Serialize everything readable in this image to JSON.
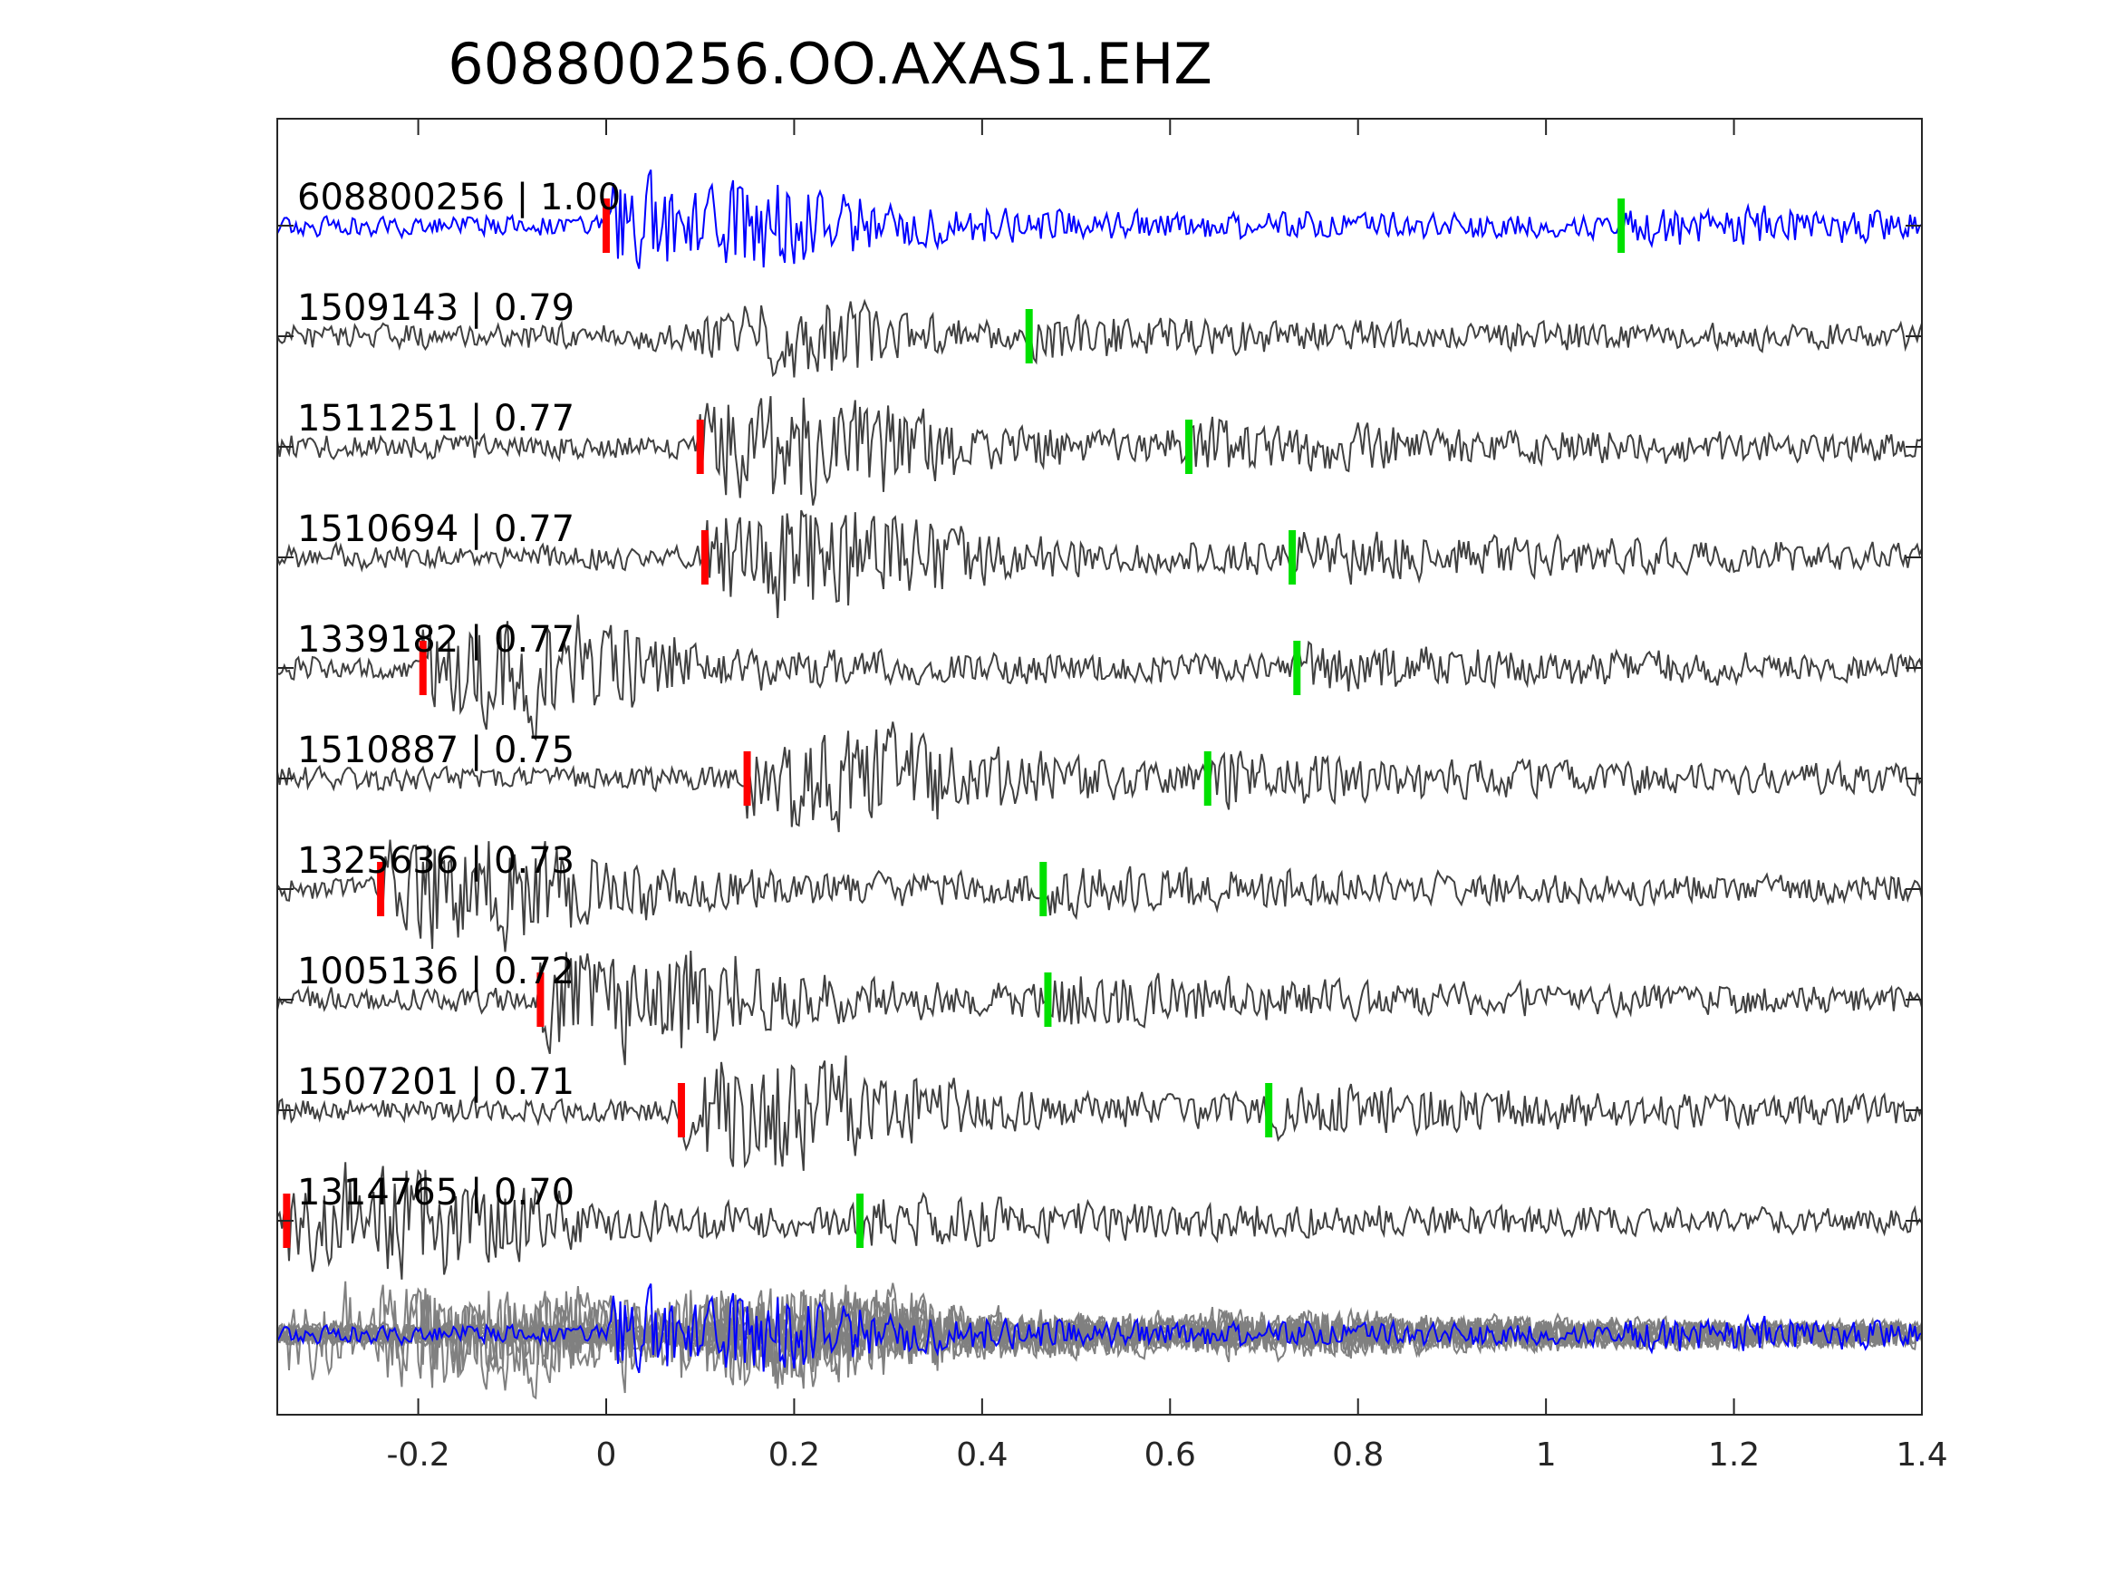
{
  "chart_data": {
    "type": "line",
    "title": "608800256.OO.AXAS1.EHZ",
    "xlabel": "",
    "ylabel": "",
    "xlim": [
      -0.35,
      1.4
    ],
    "xticks": [
      -0.2,
      0,
      0.2,
      0.4,
      0.6,
      0.8,
      1,
      1.2,
      1.4
    ],
    "xtick_labels": [
      "-0.2",
      "0",
      "0.2",
      "0.4",
      "0.6",
      "0.8",
      "1",
      "1.2",
      "1.4"
    ],
    "grid": false,
    "legend": "none",
    "colors": {
      "reference_trace": "#0000ff",
      "template_trace": "#404040",
      "stack_trace": "#808080",
      "p_pick": "#ff0000",
      "s_pick": "#00e000",
      "axes": "#262626"
    },
    "series": [
      {
        "label": "608800256 | 1.00",
        "reference": true,
        "p_pick": 0.0,
        "s_pick": 1.08
      },
      {
        "label": "1509143 | 0.79",
        "p_pick": null,
        "s_pick": 0.45
      },
      {
        "label": "1511251 | 0.77",
        "p_pick": 0.1,
        "s_pick": 0.62
      },
      {
        "label": "1510694 | 0.77",
        "p_pick": 0.105,
        "s_pick": 0.73
      },
      {
        "label": "1339182 | 0.77",
        "p_pick": -0.195,
        "s_pick": 0.735
      },
      {
        "label": "1510887 | 0.75",
        "p_pick": 0.15,
        "s_pick": 0.64
      },
      {
        "label": "1325636 | 0.73",
        "p_pick": -0.24,
        "s_pick": 0.465
      },
      {
        "label": "1005136 | 0.72",
        "p_pick": -0.07,
        "s_pick": 0.47
      },
      {
        "label": "1507201 | 0.71",
        "p_pick": 0.08,
        "s_pick": 0.705
      },
      {
        "label": "1314765 | 0.70",
        "p_pick": -0.34,
        "s_pick": 0.27
      }
    ]
  }
}
